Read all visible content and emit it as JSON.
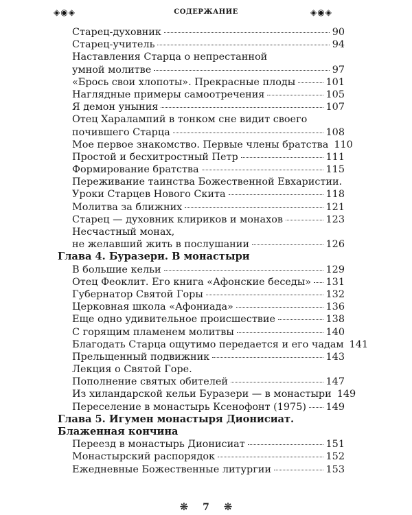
{
  "header": {
    "running_title": "СОДЕРЖАНИЕ",
    "ornament_left": "◈◉◈",
    "ornament_right": "◈◉◈"
  },
  "toc": [
    {
      "type": "entry",
      "lines": [
        "Старец-духовник"
      ],
      "page": "90"
    },
    {
      "type": "entry",
      "lines": [
        "Старец-учитель"
      ],
      "page": "94"
    },
    {
      "type": "entry",
      "lines": [
        "Наставления Старца о непрестанной",
        "умной молитве"
      ],
      "page": "97"
    },
    {
      "type": "entry",
      "lines": [
        "«Брось свои хлопоты». Прекрасные плоды"
      ],
      "page": "101"
    },
    {
      "type": "entry",
      "lines": [
        "Наглядные примеры самоотречения"
      ],
      "page": "105"
    },
    {
      "type": "entry",
      "lines": [
        "Я демон уныния"
      ],
      "page": "107"
    },
    {
      "type": "entry",
      "lines": [
        "Отец Харалампий в тонком сне видит своего",
        "почившего Старца"
      ],
      "page": "108"
    },
    {
      "type": "entry",
      "lines": [
        "Мое первое знакомство. Первые члены братства"
      ],
      "page": "110"
    },
    {
      "type": "entry",
      "lines": [
        "Простой и бесхитростный Петр"
      ],
      "page": "111"
    },
    {
      "type": "entry",
      "lines": [
        "Формирование братства"
      ],
      "page": "115"
    },
    {
      "type": "entry",
      "lines": [
        "Переживание таинства Божественной Евхаристии.",
        "Уроки Старцев Нового Скита"
      ],
      "page": "118"
    },
    {
      "type": "entry",
      "lines": [
        "Молитва за ближних"
      ],
      "page": "121"
    },
    {
      "type": "entry",
      "lines": [
        "Старец — духовник клириков и монахов"
      ],
      "page": "123"
    },
    {
      "type": "entry",
      "lines": [
        "Несчастный монах,",
        "не желавший жить в послушании"
      ],
      "page": "126"
    },
    {
      "type": "chapter",
      "lines": [
        "Глава 4. Буразери. В монастыри"
      ]
    },
    {
      "type": "entry",
      "lines": [
        "В большие кельи"
      ],
      "page": "129"
    },
    {
      "type": "entry",
      "lines": [
        "Отец Феоклит. Его книга «Афонские беседы»"
      ],
      "page": "131"
    },
    {
      "type": "entry",
      "lines": [
        "Губернатор Святой Горы"
      ],
      "page": "132"
    },
    {
      "type": "entry",
      "lines": [
        "Церковная школа «Афониада»"
      ],
      "page": "136"
    },
    {
      "type": "entry",
      "lines": [
        "Еще одно удивительное происшествие"
      ],
      "page": "138"
    },
    {
      "type": "entry",
      "lines": [
        "С горящим пламенем молитвы"
      ],
      "page": "140"
    },
    {
      "type": "entry",
      "lines": [
        "Благодать Старца ощутимо передается и его чадам"
      ],
      "page": "141"
    },
    {
      "type": "entry",
      "lines": [
        "Прельщенный подвижник"
      ],
      "page": "143"
    },
    {
      "type": "entry",
      "lines": [
        "Лекция о Святой Горе.",
        "Пополнение святых обителей"
      ],
      "page": "147"
    },
    {
      "type": "entry",
      "lines": [
        "Из хиландарской кельи Буразери — в монастыри"
      ],
      "page": "149"
    },
    {
      "type": "entry",
      "lines": [
        "Переселение в монастырь Ксенофонт (1975)"
      ],
      "page": "149"
    },
    {
      "type": "chapter",
      "lines": [
        "Глава 5. Игумен монастыря Дионисиат.",
        "Блаженная кончина"
      ]
    },
    {
      "type": "entry",
      "lines": [
        "Переезд в монастырь Дионисиат"
      ],
      "page": "151"
    },
    {
      "type": "entry",
      "lines": [
        "Монастырский распорядок"
      ],
      "page": "152"
    },
    {
      "type": "entry",
      "lines": [
        "Ежедневные Божественные литургии"
      ],
      "page": "153"
    }
  ],
  "footer": {
    "page_number": "7",
    "flourish_left": "❋",
    "flourish_right": "❋"
  }
}
